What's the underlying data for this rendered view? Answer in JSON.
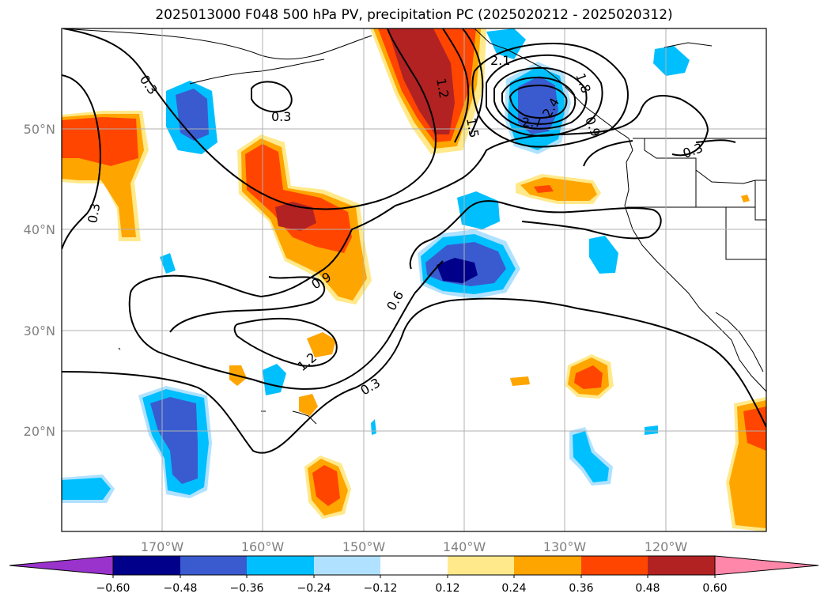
{
  "title": "2025013000 F048 500 hPa PV, precipitation PC (2025020212 - 2025020312)",
  "map": {
    "lon_range": [
      -180,
      -110
    ],
    "lat_range": [
      10,
      60
    ],
    "lon_ticks": [
      "170°W",
      "160°W",
      "150°W",
      "140°W",
      "130°W",
      "120°W"
    ],
    "lat_ticks": [
      "20°N",
      "30°N",
      "40°N",
      "50°N"
    ],
    "grid": true
  },
  "colorbar": {
    "colors": [
      "#9933cc",
      "#00008b",
      "#3a5bcf",
      "#00bfff",
      "#b0e2ff",
      "#ffffff",
      "#ffe98a",
      "#ffa500",
      "#ff4500",
      "#b22222",
      "#ff88aa"
    ],
    "tick_labels": [
      "−0.60",
      "−0.48",
      "−0.36",
      "−0.24",
      "−0.12",
      "0.12",
      "0.24",
      "0.36",
      "0.48",
      "0.60"
    ],
    "extend": "both"
  },
  "contour_labels": [
    "0.3",
    "0.3",
    "0.3",
    "0.3",
    "0.3",
    "0.6",
    "0.9",
    "1.2",
    "1.2",
    "1.5",
    "1.8",
    "2.1",
    "2.4",
    "2.7",
    "0.9"
  ]
}
